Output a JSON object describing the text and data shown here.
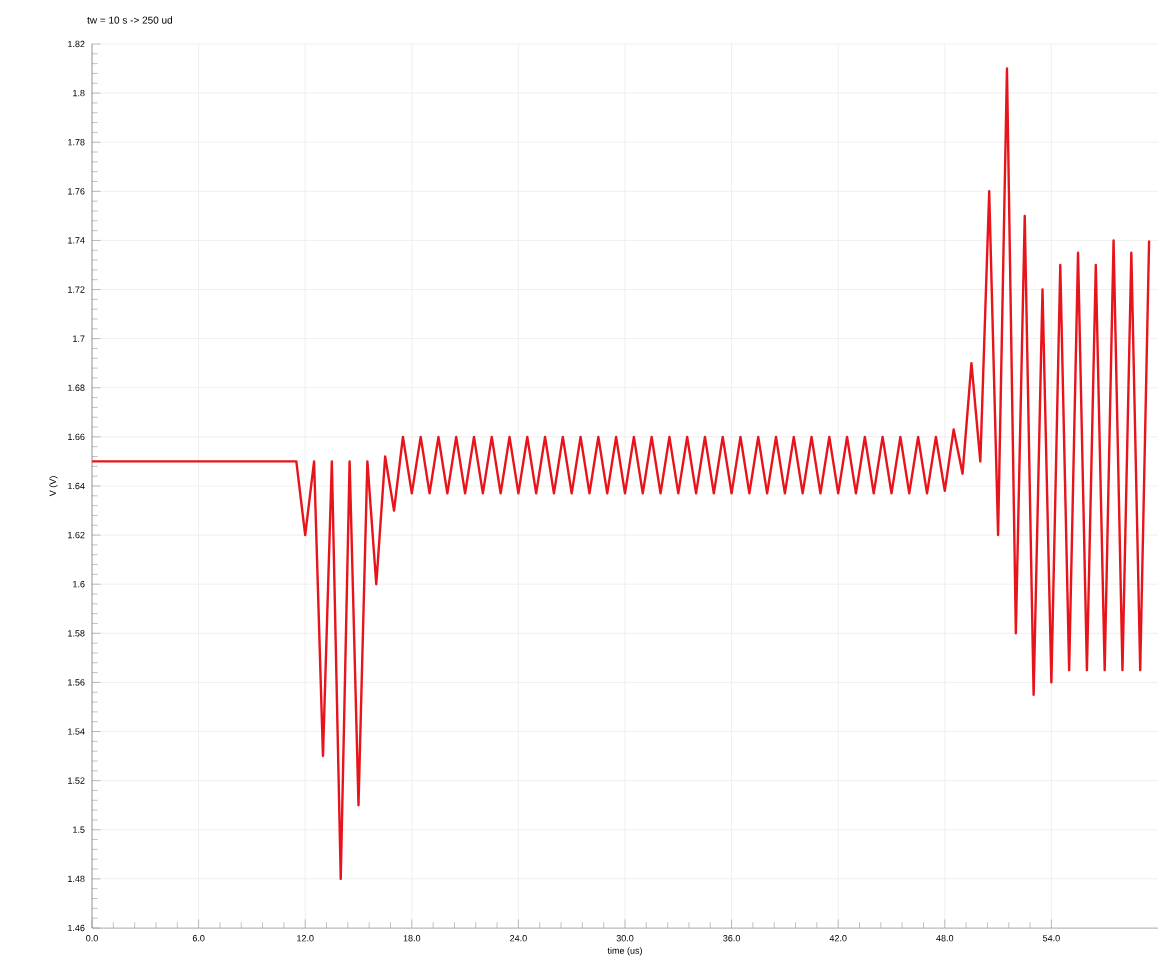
{
  "chart_data": {
    "type": "line",
    "title": "tw = 10 s -> 250 ud",
    "xlabel": "time (us)",
    "ylabel": "V (V)",
    "xlim": [
      0,
      60
    ],
    "ylim": [
      1.46,
      1.82
    ],
    "xticks": [
      {
        "value": 0,
        "label": "0.0"
      },
      {
        "value": 6,
        "label": "6.0"
      },
      {
        "value": 12,
        "label": "12.0"
      },
      {
        "value": 18,
        "label": "18.0"
      },
      {
        "value": 24,
        "label": "24.0"
      },
      {
        "value": 30,
        "label": "30.0"
      },
      {
        "value": 36,
        "label": "36.0"
      },
      {
        "value": 42,
        "label": "42.0"
      },
      {
        "value": 48,
        "label": "48.0"
      },
      {
        "value": 54,
        "label": "54.0"
      }
    ],
    "yticks": [
      1.46,
      1.48,
      1.5,
      1.52,
      1.54,
      1.56,
      1.58,
      1.6,
      1.62,
      1.64,
      1.66,
      1.68,
      1.7,
      1.72,
      1.74,
      1.76,
      1.78,
      1.8,
      1.82
    ],
    "grid": true,
    "series": [
      {
        "color": "#e8141c",
        "x": [
          0,
          11,
          11.5,
          12,
          12.5,
          13,
          13.5,
          14,
          14.5,
          15,
          15.5,
          16,
          16.5,
          17,
          17.5,
          18,
          18.5,
          19,
          19.5,
          20,
          20.5,
          21,
          21.5,
          22,
          22.5,
          23,
          23.5,
          24,
          24.5,
          25,
          25.5,
          26,
          26.5,
          27,
          27.5,
          28,
          28.5,
          29,
          29.5,
          30,
          30.5,
          31,
          31.5,
          32,
          32.5,
          33,
          33.5,
          34,
          34.5,
          35,
          35.5,
          36,
          36.5,
          37,
          37.5,
          38,
          38.5,
          39,
          39.5,
          40,
          40.5,
          41,
          41.5,
          42,
          42.5,
          43,
          43.5,
          44,
          44.5,
          45,
          45.5,
          46,
          46.5,
          47,
          47.5,
          48,
          48.5,
          49,
          49.5,
          50,
          50.5,
          51,
          51.5,
          52,
          52.5,
          53,
          53.5,
          54,
          54.5,
          55,
          55.5,
          56,
          56.5,
          57,
          57.5,
          58,
          58.5,
          59,
          59.5
        ],
        "values": [
          1.65,
          1.65,
          1.65,
          1.62,
          1.65,
          1.53,
          1.65,
          1.48,
          1.65,
          1.51,
          1.65,
          1.6,
          1.652,
          1.63,
          1.66,
          1.637,
          1.66,
          1.637,
          1.66,
          1.637,
          1.66,
          1.637,
          1.66,
          1.637,
          1.66,
          1.637,
          1.66,
          1.637,
          1.66,
          1.637,
          1.66,
          1.637,
          1.66,
          1.637,
          1.66,
          1.637,
          1.66,
          1.637,
          1.66,
          1.637,
          1.66,
          1.637,
          1.66,
          1.637,
          1.66,
          1.637,
          1.66,
          1.637,
          1.66,
          1.637,
          1.66,
          1.637,
          1.66,
          1.637,
          1.66,
          1.637,
          1.66,
          1.637,
          1.66,
          1.637,
          1.66,
          1.637,
          1.66,
          1.637,
          1.66,
          1.637,
          1.66,
          1.637,
          1.66,
          1.637,
          1.66,
          1.637,
          1.66,
          1.637,
          1.66,
          1.638,
          1.663,
          1.645,
          1.69,
          1.65,
          1.76,
          1.62,
          1.81,
          1.58,
          1.75,
          1.555,
          1.72,
          1.56,
          1.73,
          1.565,
          1.735,
          1.565,
          1.73,
          1.565,
          1.74,
          1.565,
          1.735,
          1.565,
          1.74
        ]
      }
    ]
  }
}
